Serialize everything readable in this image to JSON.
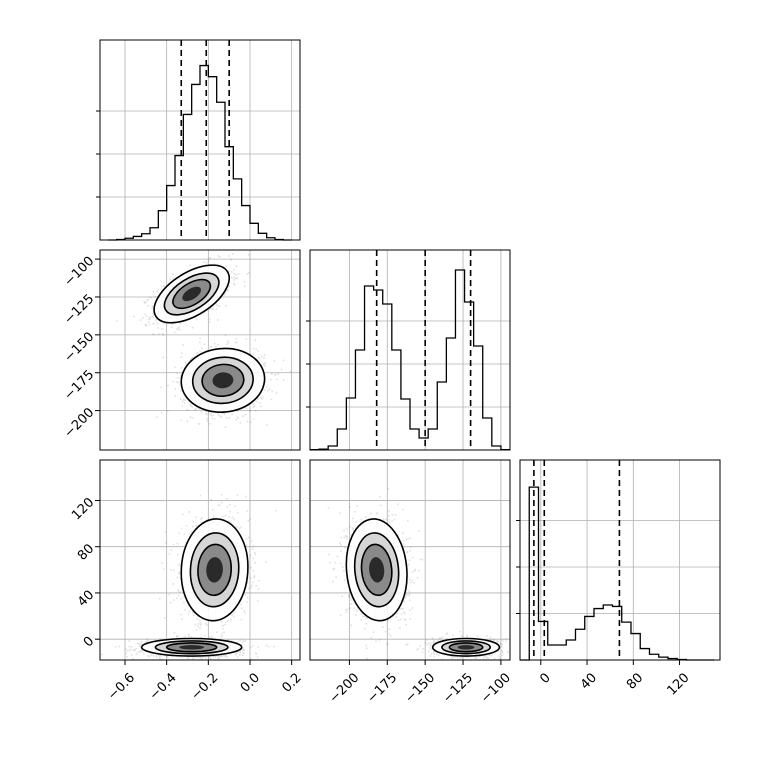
{
  "chart_data": {
    "type": "corner",
    "grid": true,
    "params": [
      {
        "range": [
          -0.72,
          0.24
        ],
        "ticks": [
          -0.6,
          -0.4,
          -0.2,
          0.0,
          0.2
        ],
        "tick_labels": [
          "−0.6",
          "−0.4",
          "−0.2",
          "0.0",
          "0.2"
        ]
      },
      {
        "range": [
          -226,
          -94
        ],
        "ticks": [
          -200,
          -175,
          -150,
          -125,
          -100
        ],
        "tick_labels": [
          "−200",
          "−175",
          "−150",
          "−125",
          "−100"
        ]
      },
      {
        "range": [
          -18,
          155
        ],
        "ticks": [
          0,
          40,
          80,
          120
        ],
        "tick_labels": [
          "0",
          "40",
          "80",
          "120"
        ]
      }
    ],
    "histograms": [
      {
        "param": 0,
        "bins": [
          -0.68,
          -0.64,
          -0.6,
          -0.56,
          -0.52,
          -0.48,
          -0.44,
          -0.4,
          -0.36,
          -0.32,
          -0.28,
          -0.24,
          -0.2,
          -0.16,
          -0.12,
          -0.08,
          -0.04,
          0.0,
          0.04,
          0.08,
          0.12,
          0.16,
          0.2
        ],
        "counts": [
          0.0,
          0.2,
          0.8,
          1.6,
          2.8,
          5.5,
          13.2,
          24.5,
          38.0,
          56.5,
          70.0,
          78.5,
          73.5,
          62.0,
          42.0,
          27.5,
          15.5,
          7.5,
          3.0,
          1.0,
          0.2,
          0.0
        ],
        "quantiles": [
          -0.33,
          -0.21,
          -0.1
        ],
        "ymax": 90
      },
      {
        "param": 1,
        "bins": [
          -226,
          -220,
          -214,
          -208,
          -202,
          -196,
          -190,
          -184,
          -178,
          -172,
          -166,
          -160,
          -154,
          -148,
          -142,
          -136,
          -130,
          -124,
          -118,
          -112,
          -106,
          -100,
          -94
        ],
        "counts": [
          0.2,
          0.4,
          2.0,
          10.5,
          26.0,
          50.0,
          82.0,
          80.0,
          73.0,
          50.0,
          25.5,
          10.5,
          6.0,
          10.5,
          34.0,
          56.0,
          90.0,
          74.0,
          52.0,
          16.0,
          2.0,
          0.2
        ],
        "quantiles": [
          -182,
          -150,
          -120
        ],
        "ymax": 100
      },
      {
        "param": 2,
        "bins": [
          -18,
          -10,
          -2,
          6,
          14,
          22,
          30,
          38,
          46,
          54,
          62,
          70,
          78,
          86,
          94,
          102,
          110,
          118,
          126,
          134,
          142,
          150
        ],
        "counts": [
          0.0,
          121.0,
          27.0,
          10.5,
          10.5,
          14.0,
          21.5,
          30.5,
          36.0,
          38.5,
          37.5,
          26.5,
          18.5,
          8.0,
          4.0,
          2.0,
          1.0,
          0.3,
          0.0,
          0.0,
          0.0
        ],
        "quantiles": [
          -6,
          3,
          68
        ],
        "ymax": 140
      }
    ],
    "scatter_panels": [
      {
        "x_param": 0,
        "y_param": 1,
        "modes": [
          {
            "mean": [
              -0.28,
              -123
            ],
            "sd": [
              0.09,
              9.5
            ],
            "rho": 0.55,
            "weight": 0.5
          },
          {
            "mean": [
              -0.13,
              -180
            ],
            "sd": [
              0.1,
              10.5
            ],
            "rho": 0.05,
            "weight": 0.5
          }
        ]
      },
      {
        "x_param": 0,
        "y_param": 2,
        "modes": [
          {
            "mean": [
              -0.17,
              60
            ],
            "sd": [
              0.08,
              22
            ],
            "rho": 0.05,
            "weight": 0.5
          },
          {
            "mean": [
              -0.28,
              -7
            ],
            "sd": [
              0.12,
              3.8
            ],
            "rho": 0.0,
            "weight": 0.5
          }
        ]
      },
      {
        "x_param": 1,
        "y_param": 2,
        "modes": [
          {
            "mean": [
              -182,
              60
            ],
            "sd": [
              10,
              22
            ],
            "rho": -0.1,
            "weight": 0.5
          },
          {
            "mean": [
              -123,
              -7
            ],
            "sd": [
              11,
              3.8
            ],
            "rho": 0.0,
            "weight": 0.5
          }
        ]
      }
    ]
  },
  "colors": {
    "axes": "#000000",
    "grid": "#b0b0b0",
    "points": "#000000"
  }
}
